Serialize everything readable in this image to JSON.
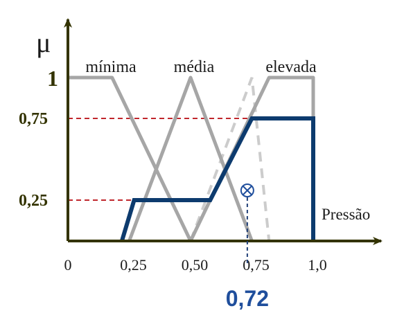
{
  "chart_data": {
    "type": "line",
    "title": "",
    "ylabel": "μ",
    "xlabel": "Pressão",
    "xlim": [
      0,
      1.0
    ],
    "ylim": [
      0,
      1
    ],
    "x_ticks": [
      {
        "value": 0,
        "label": "0"
      },
      {
        "value": 0.25,
        "label": "0,25"
      },
      {
        "value": 0.5,
        "label": "0,50"
      },
      {
        "value": 0.75,
        "label": "0,75"
      },
      {
        "value": 1.0,
        "label": "1,0"
      }
    ],
    "y_ticks": [
      {
        "value": 1,
        "label": "1"
      },
      {
        "value": 0.75,
        "label": "0,75"
      },
      {
        "value": 0.25,
        "label": "0,25"
      }
    ],
    "series": [
      {
        "name": "mínima",
        "color": "#a6a6a6",
        "x": [
          0,
          0.18,
          0.5
        ],
        "y": [
          1,
          1,
          0
        ]
      },
      {
        "name": "média",
        "color": "#a6a6a6",
        "x": [
          0.25,
          0.5,
          0.75
        ],
        "y": [
          0,
          1,
          0
        ]
      },
      {
        "name": "elevada",
        "color": "#a6a6a6",
        "x": [
          0.5,
          0.82,
          1.0,
          1.0
        ],
        "y": [
          0,
          1,
          1,
          0
        ]
      }
    ],
    "dashed_extension": {
      "color": "#cccccc",
      "x": [
        0.5,
        0.75,
        0.82
      ],
      "y": [
        0,
        1,
        0
      ]
    },
    "aggregated": {
      "color": "#0d3b6e",
      "x": [
        0.22,
        0.27,
        0.58,
        0.75,
        1.0,
        1.0
      ],
      "y": [
        0,
        0.25,
        0.25,
        0.75,
        0.75,
        0
      ]
    },
    "reference_lines": [
      {
        "y": 0.75,
        "x_to": 0.75,
        "color": "#c0262c"
      },
      {
        "y": 0.25,
        "x_to": 0.27,
        "color": "#c0262c"
      }
    ],
    "centroid": {
      "value": 0.72,
      "label": "0,72",
      "color": "#1f4e9c"
    }
  }
}
